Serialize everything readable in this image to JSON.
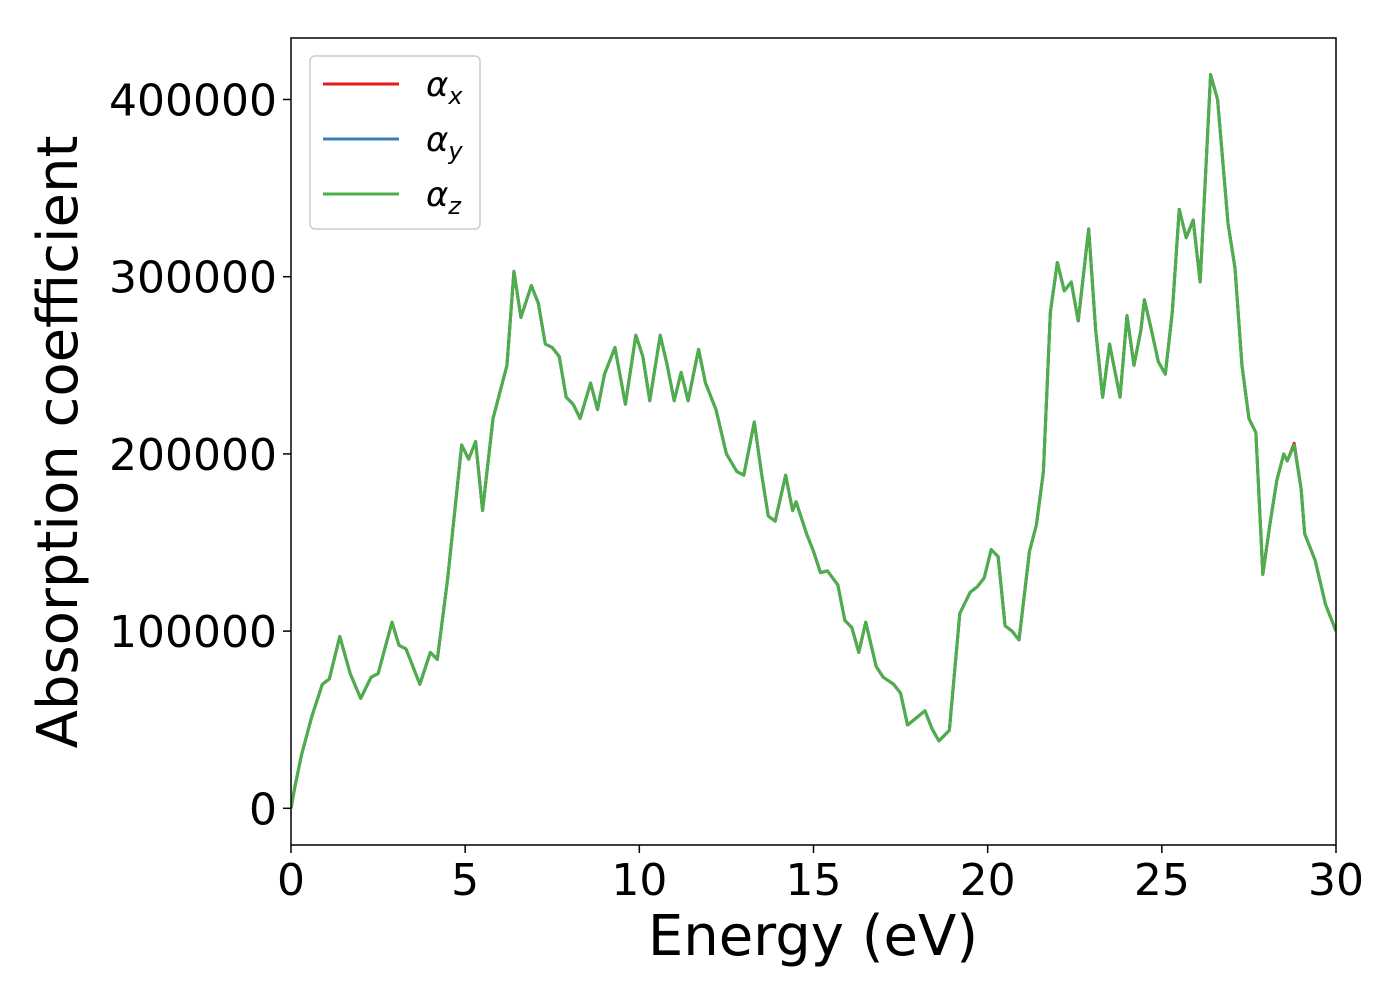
{
  "chart_data": {
    "type": "line",
    "xlabel": "Energy (eV)",
    "ylabel": "Absorption coefficient",
    "x": [
      0,
      0.1,
      0.3,
      0.6,
      0.9,
      1.1,
      1.4,
      1.7,
      2.0,
      2.3,
      2.5,
      2.9,
      3.1,
      3.3,
      3.7,
      4.0,
      4.2,
      4.5,
      4.9,
      5.1,
      5.3,
      5.5,
      5.8,
      6.2,
      6.4,
      6.6,
      6.9,
      7.1,
      7.3,
      7.5,
      7.7,
      7.9,
      8.1,
      8.3,
      8.6,
      8.8,
      9.0,
      9.3,
      9.6,
      9.9,
      10.1,
      10.3,
      10.6,
      10.8,
      11.0,
      11.2,
      11.4,
      11.7,
      11.9,
      12.2,
      12.5,
      12.8,
      13.0,
      13.3,
      13.5,
      13.7,
      13.9,
      14.2,
      14.4,
      14.5,
      14.8,
      15.0,
      15.2,
      15.4,
      15.7,
      15.9,
      16.1,
      16.3,
      16.5,
      16.8,
      17.0,
      17.3,
      17.5,
      17.7,
      18.2,
      18.4,
      18.6,
      18.9,
      19.2,
      19.5,
      19.7,
      19.9,
      20.1,
      20.3,
      20.5,
      20.7,
      20.9,
      21.2,
      21.4,
      21.6,
      21.8,
      22.0,
      22.2,
      22.4,
      22.6,
      22.9,
      23.1,
      23.3,
      23.5,
      23.8,
      24.0,
      24.2,
      24.4,
      24.5,
      24.7,
      24.9,
      25.1,
      25.3,
      25.5,
      25.7,
      25.9,
      26.1,
      26.4,
      26.6,
      26.9,
      27.1,
      27.3,
      27.5,
      27.7,
      27.9,
      28.1,
      28.3,
      28.5,
      28.6,
      28.8,
      29.0,
      29.1,
      29.4,
      29.7,
      30.0
    ],
    "series": [
      {
        "name": "αx",
        "color": "#e41a1c",
        "values": [
          0,
          11000,
          30000,
          52000,
          70000,
          73000,
          97000,
          76000,
          62000,
          74000,
          76000,
          105000,
          92000,
          90000,
          70000,
          88000,
          84000,
          130000,
          205000,
          197000,
          207000,
          168000,
          220000,
          250000,
          303000,
          277000,
          295000,
          285000,
          262000,
          260000,
          255000,
          232000,
          228000,
          220000,
          240000,
          225000,
          245000,
          260000,
          228000,
          267000,
          255000,
          230000,
          267000,
          250000,
          230000,
          246000,
          230000,
          259000,
          240000,
          225000,
          200000,
          190000,
          188000,
          218000,
          190000,
          165000,
          162000,
          188000,
          168000,
          173000,
          155000,
          145000,
          133000,
          134000,
          126000,
          106000,
          102000,
          88000,
          105000,
          80000,
          74000,
          70000,
          65000,
          47000,
          55000,
          45000,
          38000,
          44000,
          110000,
          122000,
          125000,
          130000,
          146000,
          142000,
          103000,
          100000,
          95000,
          145000,
          160000,
          190000,
          280000,
          308000,
          292000,
          297000,
          275000,
          327000,
          270000,
          232000,
          262000,
          232000,
          278000,
          250000,
          270000,
          287000,
          270000,
          252000,
          245000,
          280000,
          338000,
          322000,
          332000,
          297000,
          414000,
          400000,
          330000,
          305000,
          250000,
          220000,
          212000,
          132000,
          160000,
          185000,
          200000,
          196000,
          206000,
          180000,
          155000,
          140000,
          115000,
          100000
        ]
      },
      {
        "name": "αy",
        "color": "#377eb8",
        "values": [
          0,
          11000,
          30000,
          52000,
          70000,
          73000,
          97000,
          76000,
          62000,
          74000,
          76000,
          105000,
          92000,
          90000,
          70000,
          88000,
          84000,
          130000,
          205000,
          197000,
          207000,
          168000,
          220000,
          250000,
          303000,
          277000,
          295000,
          285000,
          262000,
          260000,
          255000,
          232000,
          228000,
          220000,
          240000,
          225000,
          245000,
          260000,
          228000,
          267000,
          255000,
          230000,
          267000,
          250000,
          230000,
          246000,
          230000,
          259000,
          240000,
          225000,
          200000,
          190000,
          188000,
          218000,
          190000,
          165000,
          162000,
          188000,
          168000,
          173000,
          155000,
          145000,
          133000,
          134000,
          126000,
          106000,
          102000,
          88000,
          105000,
          80000,
          74000,
          70000,
          65000,
          47000,
          55000,
          45000,
          38000,
          44000,
          110000,
          122000,
          125000,
          130000,
          146000,
          142000,
          103000,
          100000,
          95000,
          145000,
          160000,
          190000,
          280000,
          308000,
          292000,
          297000,
          275000,
          327000,
          270000,
          232000,
          262000,
          232000,
          278000,
          250000,
          270000,
          287000,
          270000,
          252000,
          245000,
          280000,
          338000,
          322000,
          332000,
          297000,
          414000,
          400000,
          330000,
          305000,
          250000,
          220000,
          212000,
          132000,
          160000,
          185000,
          200000,
          196000,
          205000,
          180000,
          155000,
          140000,
          115000,
          100000
        ]
      },
      {
        "name": "αz",
        "color": "#4daf4a",
        "values": [
          0,
          11000,
          30000,
          52000,
          70000,
          73000,
          97000,
          76000,
          62000,
          74000,
          76000,
          105000,
          92000,
          90000,
          70000,
          88000,
          84000,
          130000,
          205000,
          197000,
          207000,
          168000,
          220000,
          250000,
          303000,
          277000,
          295000,
          285000,
          262000,
          260000,
          255000,
          232000,
          228000,
          220000,
          240000,
          225000,
          245000,
          260000,
          228000,
          267000,
          255000,
          230000,
          267000,
          250000,
          230000,
          246000,
          230000,
          259000,
          240000,
          225000,
          200000,
          190000,
          188000,
          218000,
          190000,
          165000,
          162000,
          188000,
          168000,
          173000,
          155000,
          145000,
          133000,
          134000,
          126000,
          106000,
          102000,
          88000,
          105000,
          80000,
          74000,
          70000,
          65000,
          47000,
          55000,
          45000,
          38000,
          44000,
          110000,
          122000,
          125000,
          130000,
          146000,
          142000,
          103000,
          100000,
          95000,
          145000,
          160000,
          190000,
          280000,
          308000,
          292000,
          297000,
          275000,
          327000,
          270000,
          232000,
          262000,
          232000,
          278000,
          250000,
          270000,
          287000,
          270000,
          252000,
          245000,
          280000,
          338000,
          322000,
          332000,
          297000,
          414000,
          400000,
          330000,
          305000,
          250000,
          220000,
          212000,
          132000,
          160000,
          185000,
          200000,
          196000,
          205000,
          180000,
          155000,
          140000,
          115000,
          100000
        ]
      }
    ],
    "xlim": [
      0,
      30
    ],
    "xticks": [
      0,
      5,
      10,
      15,
      20,
      25,
      30
    ],
    "ylim": [
      -20700,
      434700
    ],
    "yticks": [
      0,
      100000,
      200000,
      300000,
      400000
    ],
    "legend": "upper left",
    "grid": false
  }
}
